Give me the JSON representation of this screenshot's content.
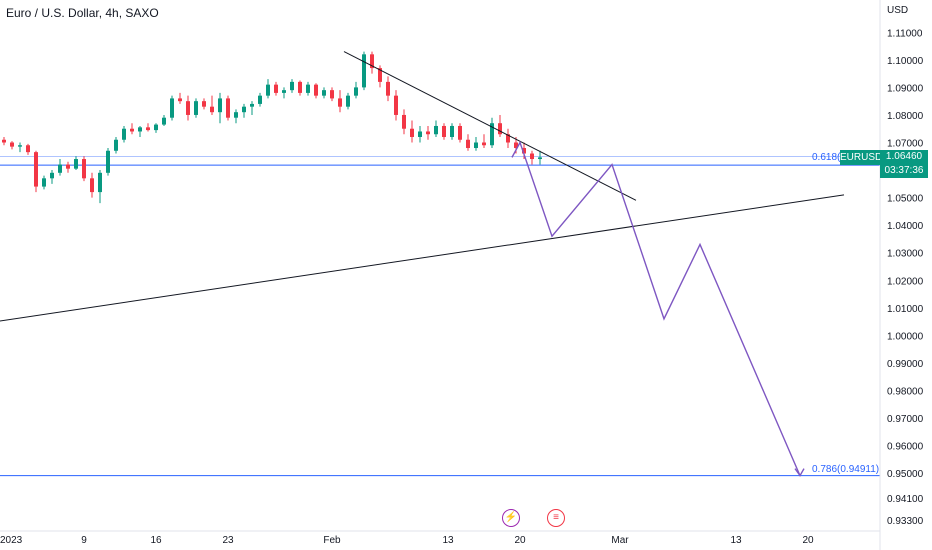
{
  "header": {
    "title": "Euro / U.S. Dollar, 4h, SAXO"
  },
  "axis": {
    "currency": "USD"
  },
  "price_marker": {
    "symbol": "EURUSD",
    "price": "1.06460",
    "countdown": "03:37:36",
    "color": "#089981"
  },
  "fib_levels": [
    {
      "label": "0.618(",
      "value": 1.0618
    },
    {
      "label": "0.786(0.94911)",
      "value": 0.94911
    }
  ],
  "events": [
    {
      "name": "lightning-event-icon",
      "glyph": "⚡",
      "color": "#9c27b0"
    },
    {
      "name": "us-flag-event-icon",
      "glyph": "≡",
      "color": "#f23645"
    }
  ],
  "colors": {
    "up": "#089981",
    "down": "#f23645",
    "fib": "#2962ff",
    "projection": "#7e57c2",
    "trendline": "#131722"
  },
  "chart_data": {
    "type": "candlestick",
    "ylim": [
      0.929,
      1.117
    ],
    "y_ticks": [
      "1.11000",
      "1.10000",
      "1.09000",
      "1.08000",
      "1.07000",
      "1.06000",
      "1.05000",
      "1.04000",
      "1.03000",
      "1.02000",
      "1.01000",
      "1.00000",
      "0.99000",
      "0.98000",
      "0.97000",
      "0.96000",
      "0.95000",
      "0.94100",
      "0.93300"
    ],
    "x_ticks": [
      "2023",
      "9",
      "16",
      "23",
      "Feb",
      "13",
      "20",
      "Mar",
      "13",
      "20"
    ],
    "ohlc": [
      [
        1.071,
        1.072,
        1.069,
        1.07
      ],
      [
        1.07,
        1.0705,
        1.0675,
        1.0685
      ],
      [
        1.0685,
        1.07,
        1.0665,
        1.069
      ],
      [
        1.069,
        1.0695,
        1.0655,
        1.0665
      ],
      [
        1.0665,
        1.067,
        1.052,
        1.054
      ],
      [
        1.054,
        1.058,
        1.053,
        1.057
      ],
      [
        1.057,
        1.06,
        1.055,
        1.059
      ],
      [
        1.059,
        1.064,
        1.058,
        1.062
      ],
      [
        1.062,
        1.063,
        1.059,
        1.0605
      ],
      [
        1.0605,
        1.065,
        1.06,
        1.064
      ],
      [
        1.064,
        1.065,
        1.056,
        1.057
      ],
      [
        1.057,
        1.059,
        1.05,
        1.052
      ],
      [
        1.052,
        1.06,
        1.048,
        1.059
      ],
      [
        1.059,
        1.068,
        1.058,
        1.067
      ],
      [
        1.067,
        1.072,
        1.066,
        1.071
      ],
      [
        1.071,
        1.076,
        1.07,
        1.075
      ],
      [
        1.075,
        1.077,
        1.073,
        1.074
      ],
      [
        1.074,
        1.076,
        1.072,
        1.0755
      ],
      [
        1.0755,
        1.077,
        1.074,
        1.0745
      ],
      [
        1.0745,
        1.077,
        1.0735,
        1.0765
      ],
      [
        1.0765,
        1.08,
        1.076,
        1.079
      ],
      [
        1.079,
        1.087,
        1.078,
        1.086
      ],
      [
        1.086,
        1.088,
        1.084,
        1.085
      ],
      [
        1.085,
        1.087,
        1.078,
        1.08
      ],
      [
        1.08,
        1.086,
        1.079,
        1.085
      ],
      [
        1.085,
        1.086,
        1.082,
        1.083
      ],
      [
        1.083,
        1.087,
        1.08,
        1.081
      ],
      [
        1.081,
        1.088,
        1.077,
        1.086
      ],
      [
        1.086,
        1.087,
        1.078,
        1.079
      ],
      [
        1.079,
        1.082,
        1.077,
        1.081
      ],
      [
        1.081,
        1.084,
        1.079,
        1.083
      ],
      [
        1.083,
        1.085,
        1.08,
        1.084
      ],
      [
        1.084,
        1.088,
        1.083,
        1.087
      ],
      [
        1.087,
        1.093,
        1.086,
        1.091
      ],
      [
        1.091,
        1.092,
        1.087,
        1.088
      ],
      [
        1.088,
        1.09,
        1.086,
        1.089
      ],
      [
        1.089,
        1.093,
        1.088,
        1.092
      ],
      [
        1.092,
        1.0925,
        1.087,
        1.088
      ],
      [
        1.088,
        1.092,
        1.087,
        1.091
      ],
      [
        1.091,
        1.0915,
        1.086,
        1.087
      ],
      [
        1.087,
        1.09,
        1.086,
        1.089
      ],
      [
        1.089,
        1.09,
        1.085,
        1.086
      ],
      [
        1.086,
        1.089,
        1.081,
        1.083
      ],
      [
        1.083,
        1.088,
        1.082,
        1.087
      ],
      [
        1.087,
        1.092,
        1.086,
        1.09
      ],
      [
        1.09,
        1.103,
        1.089,
        1.102
      ],
      [
        1.102,
        1.103,
        1.095,
        1.097
      ],
      [
        1.097,
        1.098,
        1.09,
        1.092
      ],
      [
        1.092,
        1.094,
        1.085,
        1.087
      ],
      [
        1.087,
        1.089,
        1.078,
        1.08
      ],
      [
        1.08,
        1.082,
        1.073,
        1.075
      ],
      [
        1.075,
        1.078,
        1.07,
        1.072
      ],
      [
        1.072,
        1.076,
        1.07,
        1.074
      ],
      [
        1.074,
        1.076,
        1.071,
        1.073
      ],
      [
        1.073,
        1.078,
        1.072,
        1.076
      ],
      [
        1.076,
        1.077,
        1.071,
        1.072
      ],
      [
        1.072,
        1.077,
        1.071,
        1.076
      ],
      [
        1.076,
        1.077,
        1.07,
        1.071
      ],
      [
        1.071,
        1.073,
        1.067,
        1.068
      ],
      [
        1.068,
        1.072,
        1.067,
        1.07
      ],
      [
        1.07,
        1.073,
        1.068,
        1.069
      ],
      [
        1.069,
        1.079,
        1.068,
        1.077
      ],
      [
        1.077,
        1.08,
        1.072,
        1.073
      ],
      [
        1.073,
        1.075,
        1.068,
        1.07
      ],
      [
        1.07,
        1.072,
        1.066,
        1.068
      ],
      [
        1.068,
        1.07,
        1.064,
        1.066
      ],
      [
        1.066,
        1.067,
        1.062,
        1.064
      ],
      [
        1.064,
        1.067,
        1.062,
        1.0646
      ]
    ],
    "trendlines": [
      {
        "name": "descending-trendline",
        "from": [
          43.0,
          1.103
        ],
        "to": [
          79.5,
          1.049
        ]
      },
      {
        "name": "ascending-trendline",
        "from": [
          -0.5,
          1.005
        ],
        "to": [
          105.5,
          1.051
        ]
      }
    ],
    "projection": [
      [
        64.0,
        1.0646
      ],
      [
        65.0,
        1.07
      ],
      [
        69.0,
        1.036
      ],
      [
        76.5,
        1.062
      ],
      [
        83.0,
        1.006
      ],
      [
        87.5,
        1.033
      ],
      [
        100.0,
        0.9491
      ]
    ]
  }
}
